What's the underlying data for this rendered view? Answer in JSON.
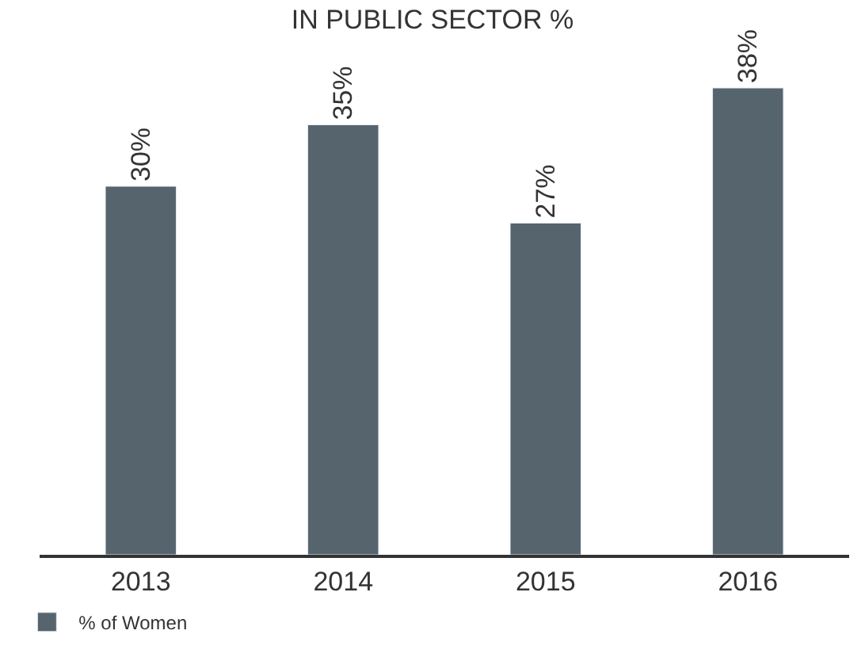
{
  "chart_data": {
    "type": "bar",
    "title": "IN PUBLIC SECTOR %",
    "categories": [
      "2013",
      "2014",
      "2015",
      "2016"
    ],
    "series": [
      {
        "name": "% of Women",
        "color": "#56646e",
        "values": [
          30,
          35,
          27,
          38
        ],
        "value_labels": [
          "30%",
          "35%",
          "27%",
          "38%"
        ]
      }
    ],
    "legend": "bottom left"
  }
}
